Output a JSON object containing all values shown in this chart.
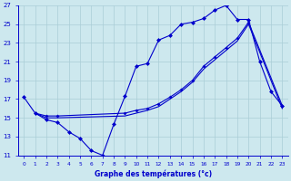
{
  "xlabel": "Graphe des températures (°c)",
  "background_color": "#cde8ee",
  "grid_color": "#aacdd6",
  "line_color": "#0000cc",
  "xmin": 0,
  "xmax": 23,
  "ymin": 11,
  "ymax": 27,
  "yticks": [
    11,
    13,
    15,
    17,
    19,
    21,
    23,
    25,
    27
  ],
  "xticks": [
    0,
    1,
    2,
    3,
    4,
    5,
    6,
    7,
    8,
    9,
    10,
    11,
    12,
    13,
    14,
    15,
    16,
    17,
    18,
    19,
    20,
    21,
    22,
    23
  ],
  "curve1_x": [
    0,
    1,
    2,
    3,
    4,
    5,
    6,
    7,
    8,
    9,
    10,
    11,
    12,
    13,
    14,
    15,
    16,
    17,
    18,
    19,
    20,
    21,
    22,
    23
  ],
  "curve1_y": [
    17.2,
    15.5,
    14.8,
    14.5,
    13.5,
    12.8,
    11.5,
    11.0,
    14.3,
    17.3,
    20.5,
    20.8,
    23.3,
    23.8,
    25.0,
    25.2,
    25.6,
    26.5,
    27.0,
    25.5,
    25.5,
    21.0,
    17.8,
    16.3
  ],
  "curve2_x": [
    1,
    2,
    3,
    9,
    10,
    11,
    12,
    13,
    14,
    15,
    16,
    17,
    18,
    19,
    20,
    23
  ],
  "curve2_y": [
    15.5,
    15.2,
    15.2,
    15.5,
    15.8,
    16.0,
    16.5,
    17.2,
    18.0,
    19.0,
    20.5,
    21.5,
    22.5,
    23.5,
    25.2,
    16.3
  ],
  "curve3_x": [
    1,
    2,
    3,
    9,
    10,
    11,
    12,
    13,
    14,
    15,
    16,
    17,
    18,
    19,
    20,
    23
  ],
  "curve3_y": [
    15.5,
    15.0,
    15.0,
    15.2,
    15.5,
    15.8,
    16.2,
    17.0,
    17.8,
    18.8,
    20.2,
    21.2,
    22.2,
    23.2,
    25.0,
    16.0
  ]
}
